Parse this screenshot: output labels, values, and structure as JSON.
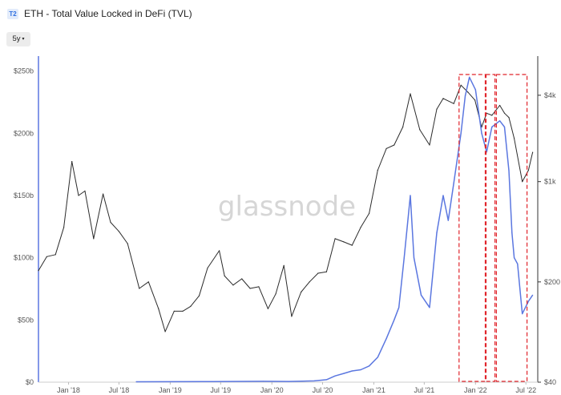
{
  "header": {
    "badge": "T2",
    "title": "ETH - Total Value Locked in DeFi (TVL)"
  },
  "controls": {
    "range_label": "5y",
    "range_caret": "▾"
  },
  "watermark": "glassnode",
  "chart_data": {
    "type": "line",
    "title": "ETH - Total Value Locked in DeFi (TVL)",
    "xlabel": "",
    "ylabel": "",
    "x_ticks": [
      "Jan '18",
      "Jul '18",
      "Jan '19",
      "Jul '19",
      "Jan '20",
      "Jul '20",
      "Jan '21",
      "Jul '21",
      "Jan '22",
      "Jul '22"
    ],
    "y_left": {
      "ticks": [
        "$0",
        "$50b",
        "$100b",
        "$150b",
        "$200b",
        "$250b"
      ],
      "tick_values": [
        0,
        50,
        100,
        150,
        200,
        250
      ],
      "unit": "billion USD",
      "range": [
        0,
        262
      ]
    },
    "y_right": {
      "ticks": [
        "$40",
        "$200",
        "$1k",
        "$4k"
      ],
      "tick_values": [
        40,
        200,
        1000,
        4000
      ],
      "scale": "log",
      "range": [
        40,
        7500
      ]
    },
    "x_range": [
      "2017-09-15",
      "2022-08-01"
    ],
    "series": [
      {
        "axis": "right",
        "color": "#2b2b2b",
        "x": [
          "2017-09-15",
          "2017-10-15",
          "2017-11-15",
          "2017-12-15",
          "2018-01-13",
          "2018-02-06",
          "2018-03-01",
          "2018-04-01",
          "2018-05-05",
          "2018-06-01",
          "2018-07-01",
          "2018-08-01",
          "2018-09-12",
          "2018-10-15",
          "2018-11-20",
          "2018-12-14",
          "2019-01-15",
          "2019-02-15",
          "2019-03-15",
          "2019-04-15",
          "2019-05-15",
          "2019-06-26",
          "2019-07-15",
          "2019-08-15",
          "2019-09-15",
          "2019-10-15",
          "2019-11-15",
          "2019-12-18",
          "2020-01-15",
          "2020-02-13",
          "2020-03-12",
          "2020-04-15",
          "2020-05-15",
          "2020-06-15",
          "2020-07-15",
          "2020-08-15",
          "2020-09-15",
          "2020-10-15",
          "2020-11-15",
          "2020-12-15",
          "2021-01-15",
          "2021-02-15",
          "2021-03-15",
          "2021-04-15",
          "2021-05-12",
          "2021-06-15",
          "2021-07-20",
          "2021-08-15",
          "2021-09-07",
          "2021-10-15",
          "2021-11-10",
          "2021-12-05",
          "2021-12-30",
          "2022-01-23",
          "2022-02-10",
          "2022-03-01",
          "2022-03-29",
          "2022-04-15",
          "2022-05-01",
          "2022-05-20",
          "2022-06-18",
          "2022-07-10",
          "2022-07-25"
        ],
        "y": [
          240,
          300,
          310,
          480,
          1380,
          800,
          860,
          400,
          820,
          520,
          450,
          370,
          180,
          200,
          130,
          90,
          125,
          125,
          135,
          160,
          250,
          330,
          220,
          190,
          210,
          180,
          185,
          130,
          165,
          260,
          115,
          170,
          200,
          230,
          235,
          400,
          380,
          360,
          480,
          600,
          1200,
          1700,
          1800,
          2400,
          4100,
          2300,
          1800,
          3200,
          3800,
          3500,
          4700,
          4200,
          3700,
          2400,
          3000,
          2900,
          3400,
          3000,
          2800,
          2000,
          1000,
          1200,
          1600
        ]
      },
      {
        "axis": "left",
        "color": "#5b77e0",
        "x": [
          "2018-09-01",
          "2019-06-01",
          "2019-12-01",
          "2020-03-01",
          "2020-06-01",
          "2020-07-15",
          "2020-08-15",
          "2020-09-15",
          "2020-10-15",
          "2020-11-15",
          "2020-12-15",
          "2021-01-15",
          "2021-02-15",
          "2021-03-15",
          "2021-04-01",
          "2021-04-20",
          "2021-05-12",
          "2021-05-25",
          "2021-06-20",
          "2021-07-20",
          "2021-08-15",
          "2021-09-07",
          "2021-09-25",
          "2021-10-15",
          "2021-11-10",
          "2021-11-25",
          "2021-12-10",
          "2022-01-01",
          "2022-01-23",
          "2022-02-10",
          "2022-03-01",
          "2022-03-29",
          "2022-04-15",
          "2022-05-01",
          "2022-05-12",
          "2022-05-20",
          "2022-06-01",
          "2022-06-18",
          "2022-07-10",
          "2022-07-25"
        ],
        "y": [
          0.3,
          0.5,
          0.7,
          0.6,
          1,
          2,
          5,
          7,
          9,
          10,
          13,
          20,
          35,
          50,
          60,
          100,
          150,
          100,
          70,
          60,
          120,
          150,
          130,
          160,
          200,
          230,
          245,
          235,
          200,
          185,
          205,
          210,
          205,
          170,
          120,
          100,
          95,
          55,
          65,
          70
        ]
      }
    ],
    "highlight_boxes": [
      {
        "x_start": "2021-11-03",
        "x_end": "2022-02-05",
        "style": "red-dashed"
      },
      {
        "x_start": "2022-02-08",
        "x_end": "2022-03-12",
        "style": "red-dashed"
      },
      {
        "x_start": "2022-03-17",
        "x_end": "2022-07-05",
        "style": "red-dashed"
      }
    ],
    "grid": false,
    "legend": "none"
  }
}
